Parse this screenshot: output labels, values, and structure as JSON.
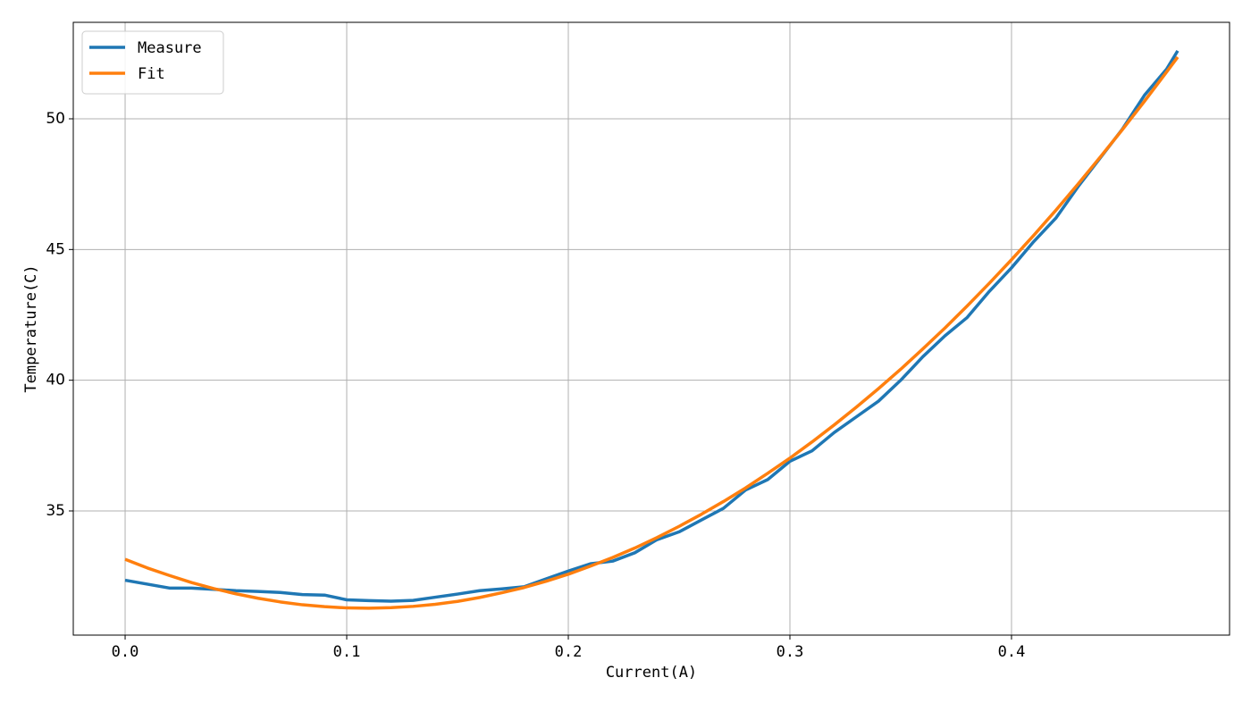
{
  "chart_data": {
    "type": "line",
    "x_label": "Current(A)",
    "y_label": "Temperature(C)",
    "x": [
      0,
      0.01,
      0.02,
      0.03,
      0.04,
      0.05,
      0.06,
      0.07,
      0.08,
      0.09,
      0.1,
      0.11,
      0.12,
      0.13,
      0.14,
      0.15,
      0.16,
      0.17,
      0.18,
      0.19,
      0.2,
      0.21,
      0.22,
      0.23,
      0.24,
      0.25,
      0.26,
      0.27,
      0.28,
      0.29,
      0.3,
      0.31,
      0.32,
      0.33,
      0.34,
      0.35,
      0.36,
      0.37,
      0.38,
      0.39,
      0.4,
      0.41,
      0.42,
      0.43,
      0.44,
      0.45,
      0.46,
      0.47,
      0.475
    ],
    "series": [
      {
        "name": "Measure",
        "color": "#1f77b4",
        "values": [
          32.35,
          32.2,
          32.05,
          32.05,
          32.0,
          31.95,
          31.92,
          31.88,
          31.8,
          31.78,
          31.6,
          31.57,
          31.55,
          31.58,
          31.7,
          31.82,
          31.95,
          32.02,
          32.1,
          32.4,
          32.7,
          32.98,
          33.08,
          33.4,
          33.9,
          34.2,
          34.65,
          35.1,
          35.8,
          36.2,
          36.9,
          37.3,
          38.0,
          38.6,
          39.2,
          40.0,
          40.9,
          41.7,
          42.4,
          43.4,
          44.3,
          45.3,
          46.2,
          47.4,
          48.5,
          49.6,
          50.9,
          51.9,
          52.6
        ]
      },
      {
        "name": "Fit",
        "color": "#ff7f0e",
        "values": [
          33.15,
          32.82,
          32.53,
          32.26,
          32.03,
          31.83,
          31.66,
          31.52,
          31.41,
          31.34,
          31.29,
          31.28,
          31.3,
          31.35,
          31.43,
          31.54,
          31.69,
          31.87,
          32.07,
          32.31,
          32.58,
          32.89,
          33.22,
          33.58,
          33.98,
          34.41,
          34.87,
          35.36,
          35.88,
          36.44,
          37.02,
          37.64,
          38.29,
          38.97,
          39.68,
          40.42,
          41.2,
          42.0,
          42.84,
          43.71,
          44.61,
          45.54,
          46.5,
          47.5,
          48.53,
          49.58,
          50.67,
          51.79,
          52.36
        ]
      }
    ],
    "xlim": [
      -0.0234,
      0.4984
    ],
    "ylim": [
      30.25,
      53.69
    ],
    "xticks": [
      {
        "value": 0,
        "label": "0.0"
      },
      0.1,
      0.2,
      0.3,
      0.4
    ],
    "yticks": [
      35,
      40,
      45,
      50
    ],
    "grid": true,
    "legend": "upper-left"
  }
}
